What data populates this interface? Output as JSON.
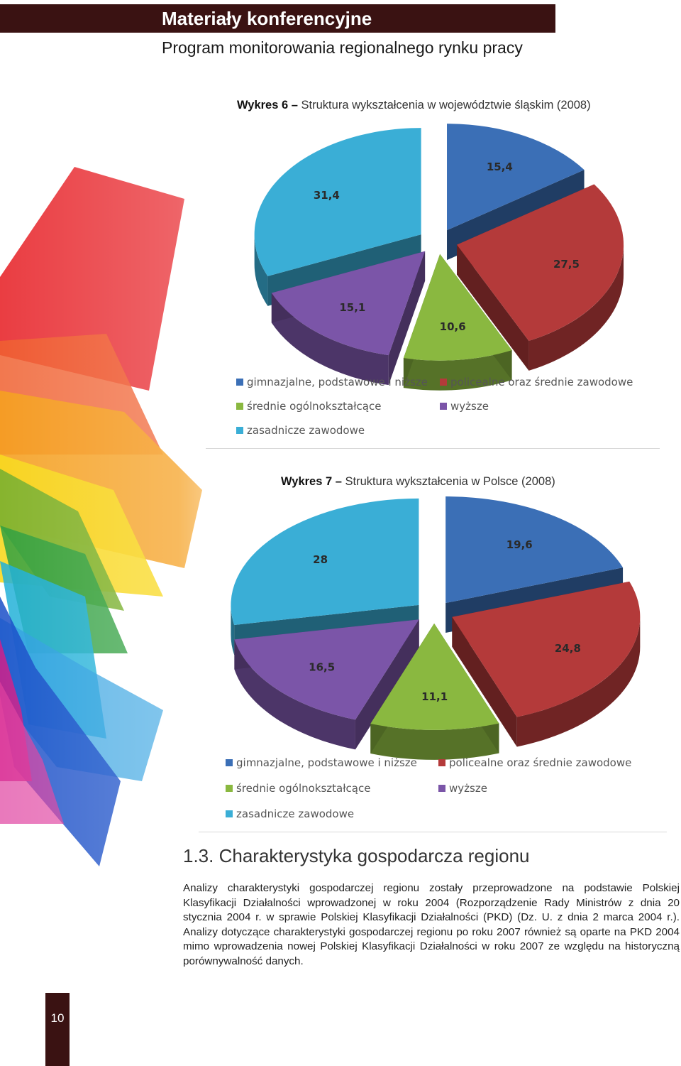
{
  "header": {
    "title": "Materiały konferencyjne",
    "subtitle": "Program monitorowania regionalnego rynku pracy"
  },
  "colors": {
    "header_bar": "#3a1212",
    "blue": "#3b6fb6",
    "red": "#b43a3a",
    "green": "#8ab840",
    "purple": "#7b55a8",
    "cyan": "#3aaed6"
  },
  "legend_labels": {
    "gimnazjalne": "gimnazjalne, podstawowe i niższe",
    "policealne": "policealne oraz średnie zawodowe",
    "srednie": "średnie ogólnokształcące",
    "wyzsze": "wyższe",
    "zasadnicze": "zasadnicze zawodowe"
  },
  "chart_data": [
    {
      "type": "pie",
      "caption_number": "Wykres 6",
      "caption_dash": "–",
      "caption_text": "Struktura wykształcenia w województwie śląskim (2008)",
      "slices": [
        {
          "key": "gimnazjalne",
          "value": 15.4,
          "label": "15,4"
        },
        {
          "key": "policealne",
          "value": 27.5,
          "label": "27,5"
        },
        {
          "key": "srednie",
          "value": 10.6,
          "label": "10,6"
        },
        {
          "key": "wyzsze",
          "value": 15.1,
          "label": "15,1"
        },
        {
          "key": "zasadnicze",
          "value": 31.4,
          "label": "31,4"
        }
      ]
    },
    {
      "type": "pie",
      "caption_number": "Wykres 7",
      "caption_dash": "–",
      "caption_text": "Struktura wykształcenia w Polsce (2008)",
      "slices": [
        {
          "key": "gimnazjalne",
          "value": 19.6,
          "label": "19,6"
        },
        {
          "key": "policealne",
          "value": 24.8,
          "label": "24,8"
        },
        {
          "key": "srednie",
          "value": 11.1,
          "label": "11,1"
        },
        {
          "key": "wyzsze",
          "value": 16.5,
          "label": "16,5"
        },
        {
          "key": "zasadnicze",
          "value": 28,
          "label": "28"
        }
      ]
    }
  ],
  "section": {
    "title": "1.3. Charakterystyka gospodarcza regionu",
    "body": "Analizy charakterystyki gospodarczej regionu zostały przeprowadzone na podstawie Polskiej Klasyfikacji Działalności wprowadzonej w roku 2004 (Rozporządzenie Rady Ministrów z dnia 20 stycznia 2004 r. w sprawie Polskiej Klasyfikacji Działalności (PKD) (Dz. U. z dnia 2 marca 2004 r.). Analizy dotyczące charakterystyki gospodarczej regionu po roku 2007 również są oparte na PKD 2004 mimo wprowadzenia nowej Polskiej Klasyfikacji Działalności w roku 2007 ze względu na historyczną porównywalność danych."
  },
  "page_number": "10"
}
